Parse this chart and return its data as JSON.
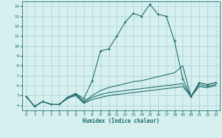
{
  "title": "",
  "xlabel": "Humidex (Indice chaleur)",
  "xlim": [
    -0.5,
    23.5
  ],
  "ylim": [
    3.5,
    14.5
  ],
  "xticks": [
    0,
    1,
    2,
    3,
    4,
    5,
    6,
    7,
    8,
    9,
    10,
    11,
    12,
    13,
    14,
    15,
    16,
    17,
    18,
    19,
    20,
    21,
    22,
    23
  ],
  "yticks": [
    4,
    5,
    6,
    7,
    8,
    9,
    10,
    11,
    12,
    13,
    14
  ],
  "bg_color": "#d6efef",
  "grid_color": "#aacfcf",
  "line_color": "#1a6b6b",
  "curve1_y": [
    4.9,
    3.9,
    4.4,
    4.1,
    4.1,
    4.8,
    5.2,
    4.7,
    6.5,
    9.5,
    9.7,
    11.0,
    12.4,
    13.3,
    13.0,
    14.2,
    13.2,
    13.0,
    10.5,
    6.7,
    4.9,
    6.3,
    6.1,
    6.3
  ],
  "curve2_y": [
    4.9,
    3.9,
    4.4,
    4.1,
    4.1,
    4.8,
    5.2,
    4.4,
    5.0,
    5.5,
    5.8,
    6.0,
    6.2,
    6.4,
    6.5,
    6.7,
    6.9,
    7.1,
    7.3,
    8.0,
    4.9,
    6.3,
    6.1,
    6.3
  ],
  "curve3_y": [
    4.9,
    3.9,
    4.4,
    4.1,
    4.1,
    4.8,
    5.1,
    4.3,
    4.8,
    5.1,
    5.3,
    5.4,
    5.5,
    5.6,
    5.7,
    5.8,
    5.9,
    6.0,
    6.1,
    6.2,
    4.9,
    6.1,
    5.9,
    6.1
  ],
  "curve4_y": [
    4.9,
    3.9,
    4.4,
    4.1,
    4.1,
    4.7,
    5.0,
    4.2,
    4.6,
    4.8,
    5.0,
    5.1,
    5.2,
    5.3,
    5.4,
    5.5,
    5.6,
    5.7,
    5.8,
    5.9,
    4.9,
    5.9,
    5.8,
    6.0
  ]
}
